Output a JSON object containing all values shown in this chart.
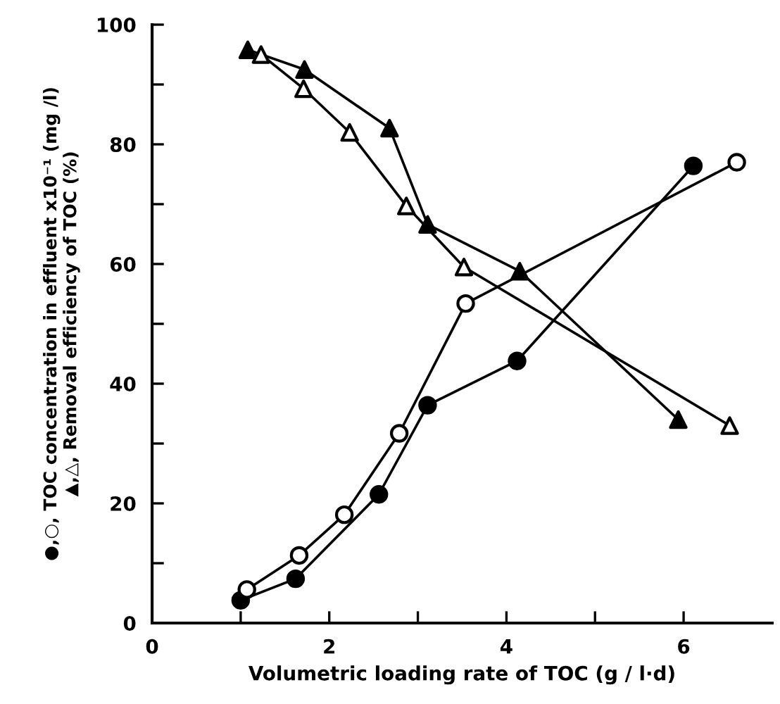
{
  "chart_data": {
    "type": "line",
    "xlabel": "Volumetric loading rate of TOC (g / l·d)",
    "ylabel": "●,○, TOC concentration in effluent x10⁻¹ (mg /l)\n▲,△, Removal efficiency of TOC (%)",
    "series": [
      {
        "color": "#000000",
        "marker": "circle",
        "colors": [
          "#000000",
          "#000000",
          "#000000",
          "#000000",
          "#000000",
          "#000000"
        ],
        "x": [
          1.0,
          1.62,
          2.56,
          3.11,
          4.12,
          6.11
        ],
        "values": [
          3.8,
          7.4,
          21.5,
          36.4,
          43.8,
          76.4
        ]
      },
      {
        "color": "#000000",
        "marker": "circle",
        "colors": [
          "#ffffff",
          "#ffffff",
          "#ffffff",
          "#ffffff",
          "#ffffff",
          "#ffffff"
        ],
        "x": [
          1.07,
          1.66,
          2.17,
          2.79,
          3.54,
          6.6
        ],
        "values": [
          5.6,
          11.3,
          18.1,
          31.7,
          53.4,
          77.0
        ]
      },
      {
        "color": "#000000",
        "marker": "triangle",
        "colors": [
          "#000000",
          "#000000",
          "#000000",
          "#000000",
          "#000000",
          "#000000"
        ],
        "x": [
          1.08,
          1.72,
          2.68,
          3.11,
          4.15,
          5.94
        ],
        "values": [
          95.8,
          92.5,
          82.7,
          66.6,
          58.8,
          34.0
        ]
      },
      {
        "color": "#000000",
        "marker": "triangle",
        "colors": [
          "#ffffff",
          "#ffffff",
          "#ffffff",
          "#ffffff",
          "#ffffff",
          "#ffffff"
        ],
        "x": [
          1.23,
          1.71,
          2.23,
          2.87,
          3.52,
          6.52
        ],
        "values": [
          95.0,
          89.3,
          82.0,
          69.7,
          59.5,
          33.0
        ]
      }
    ],
    "xlim": [
      0,
      7
    ],
    "xticks": [
      0,
      {
        "value": 1,
        "label": null
      },
      2,
      {
        "value": 3,
        "label": null
      },
      4,
      {
        "value": 5,
        "label": null
      },
      6
    ],
    "ylim": [
      0,
      100
    ],
    "yticks": [
      0,
      {
        "value": 10,
        "label": null
      },
      20,
      {
        "value": 30,
        "label": null
      },
      40,
      {
        "value": 50,
        "label": null
      },
      60,
      {
        "value": 70,
        "label": null
      },
      80,
      {
        "value": 90,
        "label": null
      },
      100
    ],
    "grid": false,
    "legend": false,
    "line_style": "solid"
  }
}
